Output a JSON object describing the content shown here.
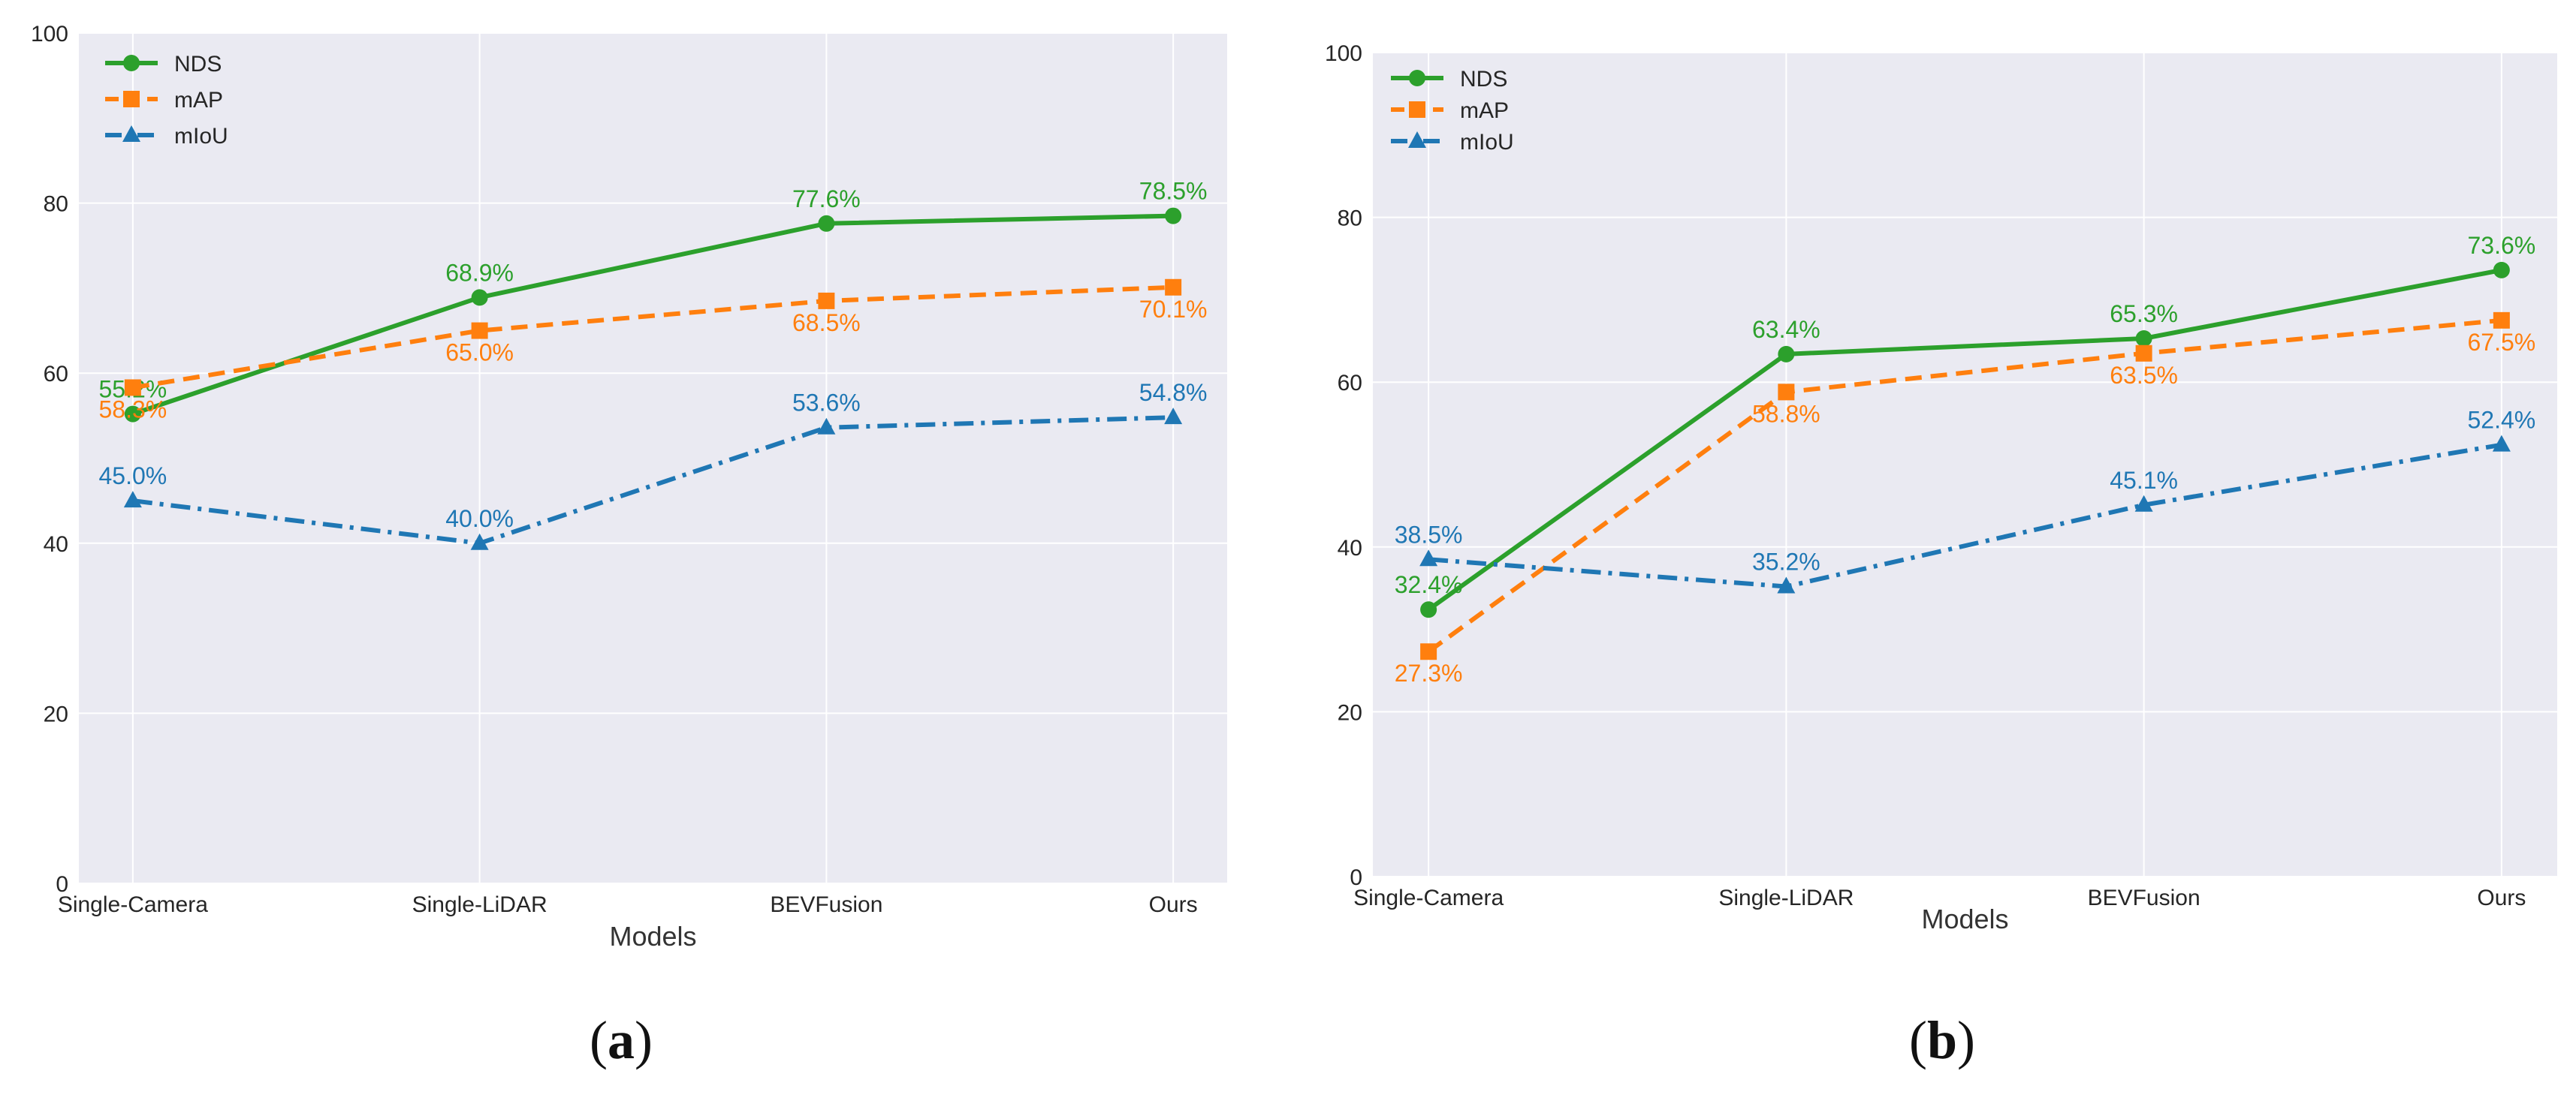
{
  "chart_data": [
    {
      "type": "line",
      "xlabel": "Models",
      "ylabel": "",
      "ylim": [
        0,
        100
      ],
      "yticks": [
        0,
        20,
        40,
        60,
        80,
        100
      ],
      "grid": true,
      "legend_position": "top-left",
      "categories": [
        "Single-Camera",
        "Single-LiDAR",
        "BEVFusion",
        "Ours"
      ],
      "series": [
        {
          "name": "NDS",
          "values": [
            55.2,
            68.9,
            77.6,
            78.5
          ],
          "labels": [
            "55.2%",
            "68.9%",
            "77.6%",
            "78.5%"
          ],
          "color": "#2ca02c",
          "marker": "circle",
          "style": "solid"
        },
        {
          "name": "mAP",
          "values": [
            58.3,
            65.0,
            68.5,
            70.1
          ],
          "labels": [
            "58.3%",
            "65.0%",
            "68.5%",
            "70.1%"
          ],
          "color": "#ff7f0e",
          "marker": "square",
          "style": "dashed"
        },
        {
          "name": "mIoU",
          "values": [
            45.0,
            40.0,
            53.6,
            54.8
          ],
          "labels": [
            "45.0%",
            "40.0%",
            "53.6%",
            "54.8%"
          ],
          "color": "#1f77b4",
          "marker": "triangle",
          "style": "dashdot"
        }
      ]
    },
    {
      "type": "line",
      "xlabel": "Models",
      "ylabel": "",
      "ylim": [
        0,
        100
      ],
      "yticks": [
        0,
        20,
        40,
        60,
        80,
        100
      ],
      "grid": true,
      "legend_position": "top-left",
      "categories": [
        "Single-Camera",
        "Single-LiDAR",
        "BEVFusion",
        "Ours"
      ],
      "series": [
        {
          "name": "NDS",
          "values": [
            32.4,
            63.4,
            65.3,
            73.6
          ],
          "labels": [
            "32.4%",
            "63.4%",
            "65.3%",
            "73.6%"
          ],
          "color": "#2ca02c",
          "marker": "circle",
          "style": "solid"
        },
        {
          "name": "mAP",
          "values": [
            27.3,
            58.8,
            63.5,
            67.5
          ],
          "labels": [
            "27.3%",
            "58.8%",
            "63.5%",
            "67.5%"
          ],
          "color": "#ff7f0e",
          "marker": "square",
          "style": "dashed"
        },
        {
          "name": "mIoU",
          "values": [
            38.5,
            35.2,
            45.1,
            52.4
          ],
          "labels": [
            "38.5%",
            "35.2%",
            "45.1%",
            "52.4%"
          ],
          "color": "#1f77b4",
          "marker": "triangle",
          "style": "dashdot"
        }
      ]
    }
  ],
  "captions": {
    "a": "a",
    "b": "b"
  },
  "colors": {
    "panel_bg": "#eaeaf2",
    "grid": "#ffffff"
  }
}
